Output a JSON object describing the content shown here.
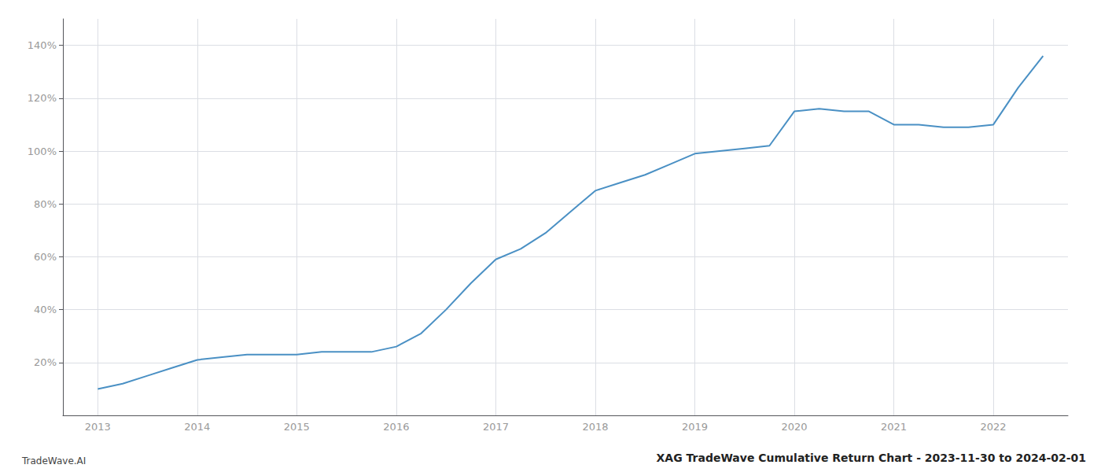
{
  "chart_data": {
    "type": "line",
    "title": "XAG TradeWave Cumulative Return Chart - 2023-11-30 to 2024-02-01",
    "annotations": [
      {
        "text": "TradeWave.AI"
      }
    ],
    "color": "#4a90c4",
    "grid": true,
    "x": [
      2013.0,
      2013.25,
      2013.5,
      2013.75,
      2014.0,
      2014.25,
      2014.5,
      2014.75,
      2015.0,
      2015.25,
      2015.5,
      2015.75,
      2016.0,
      2016.25,
      2016.5,
      2016.75,
      2017.0,
      2017.25,
      2017.5,
      2017.75,
      2018.0,
      2018.25,
      2018.5,
      2018.75,
      2019.0,
      2019.25,
      2019.5,
      2019.75,
      2020.0,
      2020.25,
      2020.5,
      2020.75,
      2021.0,
      2021.25,
      2021.5,
      2021.75,
      2022.0,
      2022.25,
      2022.5
    ],
    "values": [
      10,
      12,
      15,
      18,
      21,
      22,
      23,
      23,
      23,
      24,
      24,
      24,
      26,
      31,
      40,
      50,
      59,
      63,
      69,
      77,
      85,
      88,
      91,
      95,
      99,
      100,
      101,
      102,
      115,
      116,
      115,
      115,
      110,
      110,
      109,
      109,
      110,
      124,
      136
    ],
    "xlim": [
      2012.65,
      2022.75
    ],
    "xticks": [
      2013,
      2014,
      2015,
      2016,
      2017,
      2018,
      2019,
      2020,
      2021,
      2022
    ],
    "ylim": [
      0,
      150
    ],
    "yticks": [
      {
        "value": 20,
        "label": "20%"
      },
      {
        "value": 40,
        "label": "40%"
      },
      {
        "value": 60,
        "label": "60%"
      },
      {
        "value": 80,
        "label": "80%"
      },
      {
        "value": 100,
        "label": "100%"
      },
      {
        "value": 120,
        "label": "120%"
      },
      {
        "value": 140,
        "label": "140%"
      }
    ]
  }
}
